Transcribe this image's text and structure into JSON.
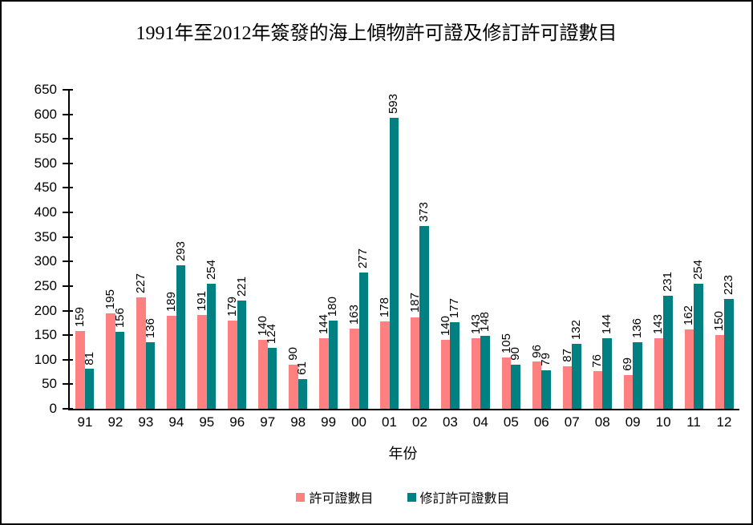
{
  "chart_data": {
    "type": "bar",
    "title": "1991年至2012年簽發的海上傾物許可證及修訂許可證數目",
    "xlabel": "年份",
    "ylabel": "",
    "categories": [
      "91",
      "92",
      "93",
      "94",
      "95",
      "96",
      "97",
      "98",
      "99",
      "00",
      "01",
      "02",
      "03",
      "04",
      "05",
      "06",
      "07",
      "08",
      "09",
      "10",
      "11",
      "12"
    ],
    "series": [
      {
        "name": "許可證數目",
        "color": "#FF8080",
        "values": [
          159,
          195,
          227,
          189,
          191,
          179,
          140,
          90,
          144,
          163,
          178,
          187,
          140,
          143,
          105,
          96,
          87,
          76,
          69,
          143,
          162,
          150
        ]
      },
      {
        "name": "修訂許可證數目",
        "color": "#008080",
        "values": [
          81,
          156,
          136,
          293,
          254,
          221,
          124,
          61,
          180,
          277,
          593,
          373,
          177,
          148,
          90,
          79,
          132,
          144,
          136,
          231,
          254,
          223
        ]
      }
    ],
    "ylim": [
      0,
      650
    ],
    "y_tick_step": 50,
    "grid": false,
    "bar_labels": true,
    "bar_label_rotation": 90,
    "legend_position": "bottom",
    "axis_color": "#000000",
    "background_color": "#FFFFFF"
  }
}
